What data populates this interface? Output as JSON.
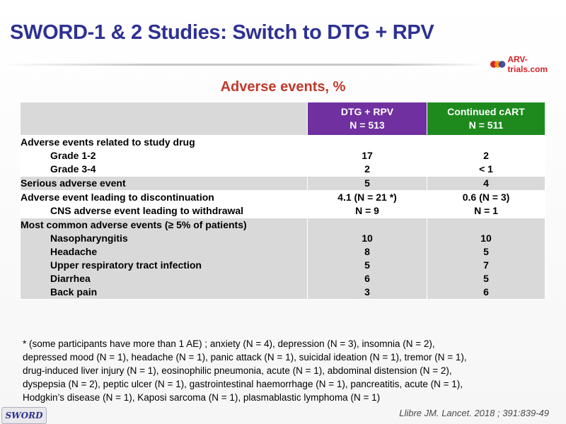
{
  "title": "SWORD-1 & 2 Studies: Switch to DTG + RPV",
  "logo": {
    "text": "ARV-trials.com",
    "colors": [
      "#d2232a",
      "#f39200",
      "#2e3192"
    ]
  },
  "subtitle": "Adverse events, %",
  "table": {
    "columns": [
      {
        "name": "DTG + RPV",
        "n": "N = 513",
        "color": "#7030a0"
      },
      {
        "name": "Continued  cART",
        "n": "N = 511",
        "color": "#1e8a1e"
      }
    ],
    "rows": [
      {
        "label": "Adverse events related to study drug",
        "sub": [
          {
            "label": "Grade 1-2",
            "dtg": "17",
            "cart": "2"
          },
          {
            "label": "Grade 3-4",
            "dtg": "2",
            "cart": "< 1"
          }
        ]
      },
      {
        "label": "Serious adverse event",
        "dtg": "5",
        "cart": "4"
      },
      {
        "label": "Adverse event leading to discontinuation",
        "dtg": "4.1 (N = 21 *)",
        "cart": "0.6 (N = 3)",
        "sub": [
          {
            "label": "CNS adverse event leading to withdrawal",
            "dtg": "N = 9",
            "cart": "N = 1"
          }
        ]
      },
      {
        "label": "Most common adverse events (≥ 5% of patients)",
        "sub": [
          {
            "label": "Nasopharyngitis",
            "dtg": "10",
            "cart": "10"
          },
          {
            "label": "Headache",
            "dtg": "8",
            "cart": "5"
          },
          {
            "label": "Upper respiratory tract infection",
            "dtg": "5",
            "cart": "7"
          },
          {
            "label": "Diarrhea",
            "dtg": "6",
            "cart": "5"
          },
          {
            "label": "Back pain",
            "dtg": "3",
            "cart": "6"
          }
        ]
      }
    ]
  },
  "footnote": [
    "* (some participants have more than 1 AE) ; anxiety (N = 4), depression (N = 3), insomnia (N = 2),",
    "depressed mood (N = 1), headache (N = 1), panic attack (N = 1), suicidal ideation (N = 1), tremor (N = 1),",
    "drug-induced liver injury  (N = 1), eosinophilic pneumonia, acute (N = 1), abdominal distension (N = 2),",
    "dyspepsia (N = 2), peptic ulcer (N = 1), gastrointestinal haemorrhage (N = 1), pancreatitis, acute (N = 1),",
    "Hodgkin’s disease (N = 1), Kaposi sarcoma (N = 1), plasmablastic lymphoma (N = 1)"
  ],
  "citation": "Llibre JM. Lancet. 2018 ; 391:839-49",
  "badge": "SWORD"
}
